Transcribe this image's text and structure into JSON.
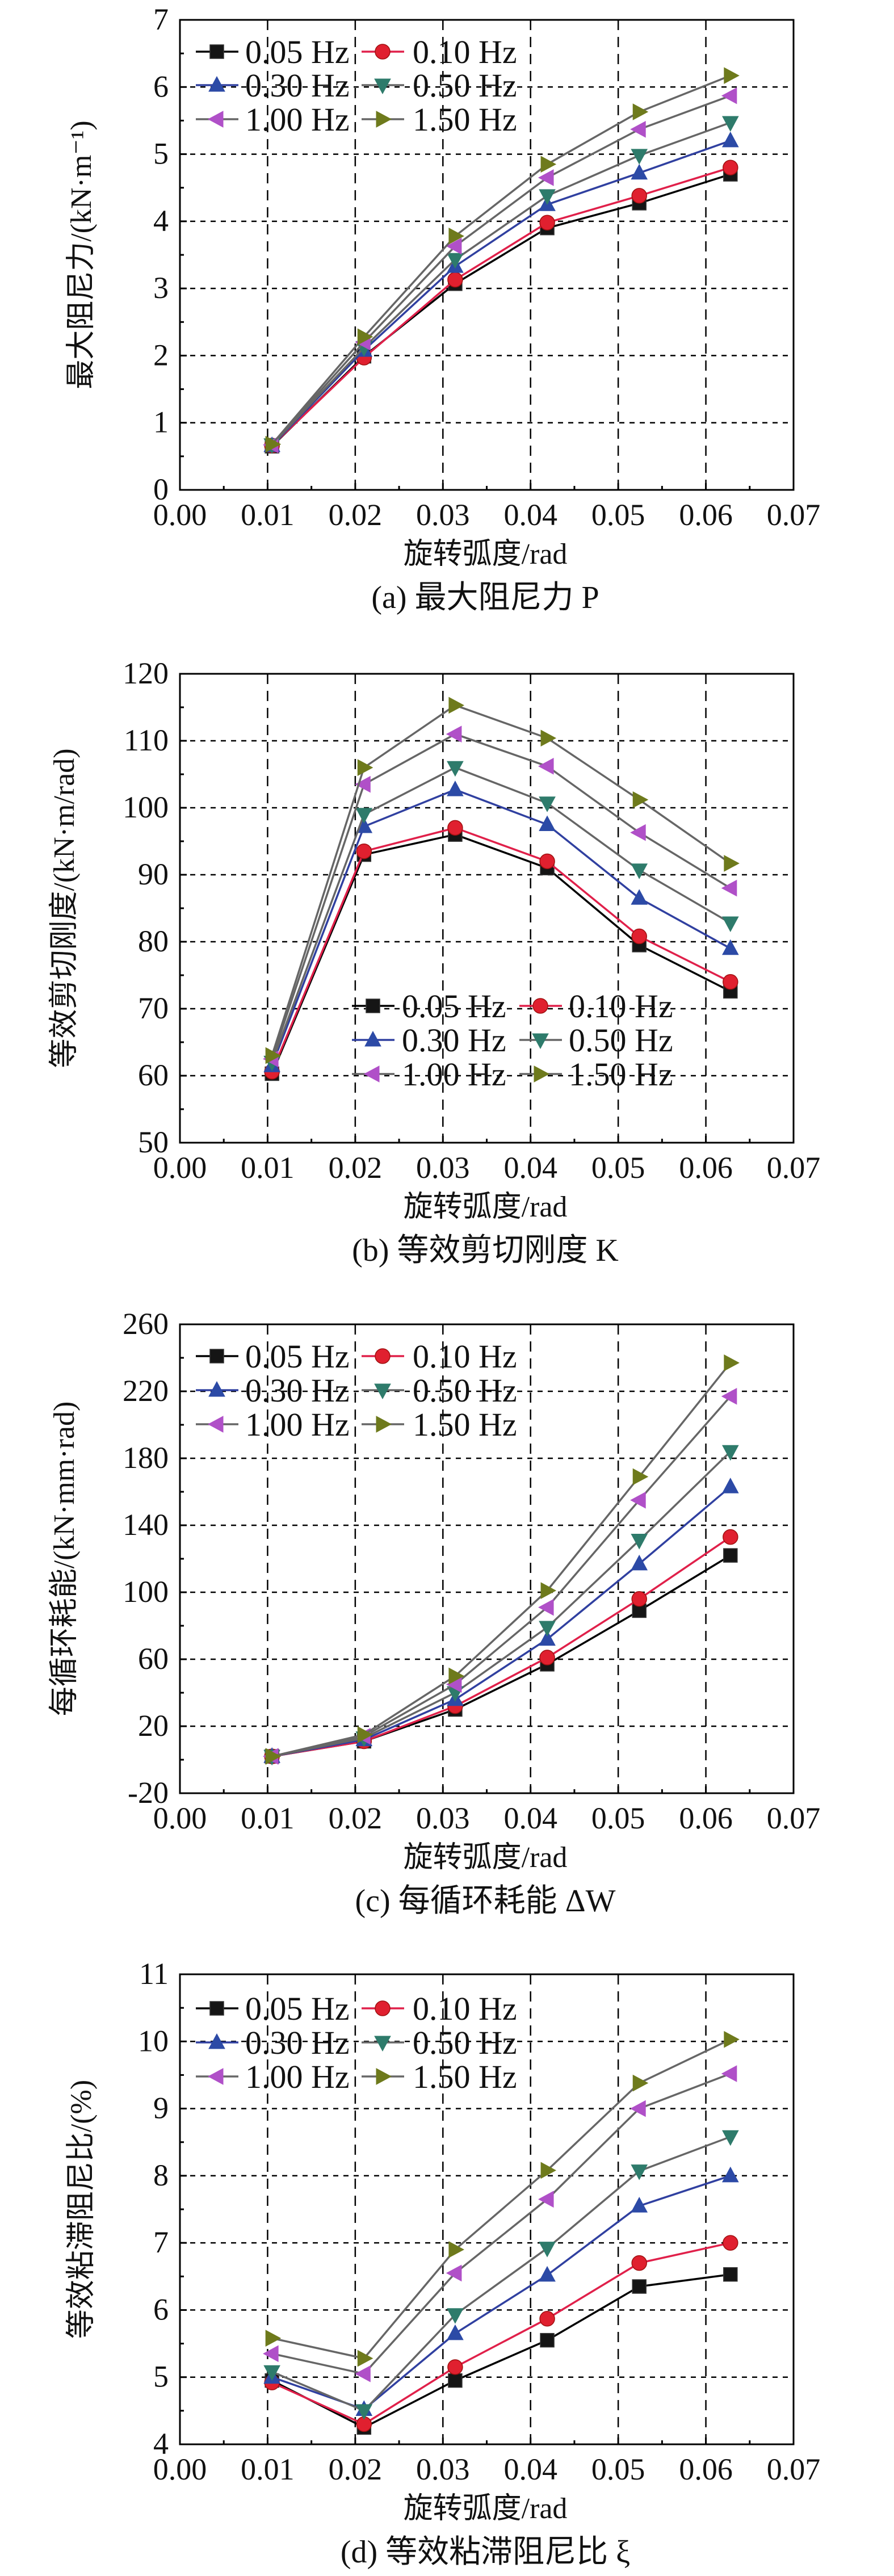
{
  "series_style": [
    {
      "name": "0.05 Hz",
      "marker": "square",
      "marker_color": "#151515",
      "line_color": "#000000"
    },
    {
      "name": "0.10 Hz",
      "marker": "circle",
      "marker_color": "#e0202f",
      "line_color": "#e0204a"
    },
    {
      "name": "0.30 Hz",
      "marker": "triangle-up",
      "marker_color": "#2c4aa6",
      "line_color": "#3040a0"
    },
    {
      "name": "0.50 Hz",
      "marker": "triangle-down",
      "marker_color": "#2e7b6b",
      "line_color": "#666666"
    },
    {
      "name": "1.00 Hz",
      "marker": "triangle-left",
      "marker_color": "#b050c8",
      "line_color": "#666666"
    },
    {
      "name": "1.50 Hz",
      "marker": "triangle-right",
      "marker_color": "#6e7a1c",
      "line_color": "#666666"
    }
  ],
  "chart_data": [
    {
      "type": "line",
      "caption": "(a) 最大阻尼力 P",
      "xlabel": "旋转弧度/rad",
      "ylabel": "最大阻尼力/(kN·m⁻¹)",
      "xlim": [
        0,
        0.07
      ],
      "ylim": [
        0,
        7
      ],
      "xticks": [
        "0.00",
        "0.01",
        "0.02",
        "0.03",
        "0.04",
        "0.05",
        "0.06",
        "0.07"
      ],
      "yticks": [
        "0",
        "1",
        "2",
        "3",
        "4",
        "5",
        "6",
        "7"
      ],
      "grid": true,
      "legend": "top-left",
      "x": [
        0.0105,
        0.021,
        0.0314,
        0.0419,
        0.0524,
        0.0628
      ],
      "series": [
        {
          "name": "0.05 Hz",
          "values": [
            0.65,
            1.99,
            3.07,
            3.9,
            4.27,
            4.7
          ]
        },
        {
          "name": "0.10 Hz",
          "values": [
            0.66,
            1.97,
            3.13,
            3.98,
            4.38,
            4.8
          ]
        },
        {
          "name": "0.30 Hz",
          "values": [
            0.66,
            2.08,
            3.33,
            4.25,
            4.72,
            5.2
          ]
        },
        {
          "name": "0.50 Hz",
          "values": [
            0.67,
            2.12,
            3.43,
            4.38,
            4.98,
            5.47
          ]
        },
        {
          "name": "1.00 Hz",
          "values": [
            0.67,
            2.2,
            3.63,
            4.65,
            5.37,
            5.87
          ]
        },
        {
          "name": "1.50 Hz",
          "values": [
            0.68,
            2.28,
            3.78,
            4.85,
            5.63,
            6.17
          ]
        }
      ]
    },
    {
      "type": "line",
      "caption": "(b) 等效剪切刚度 K",
      "xlabel": "旋转弧度/rad",
      "ylabel": "等效剪切刚度/(kN·m/rad)",
      "xlim": [
        0,
        0.07
      ],
      "ylim": [
        50,
        120
      ],
      "xticks": [
        "0.00",
        "0.01",
        "0.02",
        "0.03",
        "0.04",
        "0.05",
        "0.06",
        "0.07"
      ],
      "yticks": [
        "50",
        "60",
        "70",
        "80",
        "90",
        "100",
        "110",
        "120"
      ],
      "grid": true,
      "legend": "bottom-center",
      "x": [
        0.0105,
        0.021,
        0.0314,
        0.0419,
        0.0524,
        0.0628
      ],
      "series": [
        {
          "name": "0.05 Hz",
          "values": [
            60.3,
            93.0,
            96.0,
            91.0,
            79.5,
            72.6
          ]
        },
        {
          "name": "0.10 Hz",
          "values": [
            60.6,
            93.5,
            97.0,
            92.0,
            80.8,
            74.0
          ]
        },
        {
          "name": "0.30 Hz",
          "values": [
            61.5,
            97.2,
            102.7,
            97.5,
            86.5,
            79.0
          ]
        },
        {
          "name": "0.50 Hz",
          "values": [
            62.0,
            99.0,
            106.0,
            100.7,
            90.7,
            82.8
          ]
        },
        {
          "name": "1.00 Hz",
          "values": [
            62.5,
            103.5,
            111.0,
            106.2,
            96.3,
            88.0
          ]
        },
        {
          "name": "1.50 Hz",
          "values": [
            63.0,
            106.0,
            115.3,
            110.4,
            101.2,
            91.7
          ]
        }
      ]
    },
    {
      "type": "line",
      "caption": "(c) 每循环耗能 ΔW",
      "xlabel": "旋转弧度/rad",
      "ylabel": "每循环耗能/(kN·mm·rad)",
      "xlim": [
        0,
        0.07
      ],
      "ylim": [
        -20,
        260
      ],
      "xticks": [
        "0.00",
        "0.01",
        "0.02",
        "0.03",
        "0.04",
        "0.05",
        "0.06",
        "0.07"
      ],
      "yticks": [
        "-20",
        "20",
        "60",
        "100",
        "140",
        "180",
        "220",
        "260"
      ],
      "grid": true,
      "legend": "top-left",
      "x": [
        0.0105,
        0.021,
        0.0314,
        0.0419,
        0.0524,
        0.0628
      ],
      "series": [
        {
          "name": "0.05 Hz",
          "values": [
            2,
            11,
            30,
            57,
            89,
            122
          ]
        },
        {
          "name": "0.10 Hz",
          "values": [
            2,
            11,
            32,
            61,
            96,
            133
          ]
        },
        {
          "name": "0.30 Hz",
          "values": [
            2,
            12,
            36,
            72,
            117,
            163
          ]
        },
        {
          "name": "0.50 Hz",
          "values": [
            2,
            13,
            40,
            79,
            131,
            184
          ]
        },
        {
          "name": "1.00 Hz",
          "values": [
            2,
            14,
            45,
            91,
            155,
            217
          ]
        },
        {
          "name": "1.50 Hz",
          "values": [
            2,
            15,
            50,
            101,
            169,
            237
          ]
        }
      ]
    },
    {
      "type": "line",
      "caption": "(d) 等效粘滞阻尼比 ξ",
      "xlabel": "旋转弧度/rad",
      "ylabel": "等效粘滞阻尼比/(%)",
      "xlim": [
        0,
        0.07
      ],
      "ylim": [
        4,
        11
      ],
      "xticks": [
        "0.00",
        "0.01",
        "0.02",
        "0.03",
        "0.04",
        "0.05",
        "0.06",
        "0.07"
      ],
      "yticks": [
        "4",
        "5",
        "6",
        "7",
        "8",
        "9",
        "10",
        "11"
      ],
      "grid": true,
      "legend": "top-left",
      "x": [
        0.0105,
        0.021,
        0.0314,
        0.0419,
        0.0524,
        0.0628
      ],
      "series": [
        {
          "name": "0.05 Hz",
          "values": [
            4.95,
            4.25,
            4.95,
            5.55,
            6.35,
            6.53
          ]
        },
        {
          "name": "0.10 Hz",
          "values": [
            4.92,
            4.3,
            5.15,
            5.87,
            6.7,
            7.0
          ]
        },
        {
          "name": "0.30 Hz",
          "values": [
            5.0,
            4.52,
            5.65,
            6.52,
            7.55,
            8.0
          ]
        },
        {
          "name": "0.50 Hz",
          "values": [
            5.08,
            4.5,
            5.93,
            6.92,
            8.07,
            8.58
          ]
        },
        {
          "name": "1.00 Hz",
          "values": [
            5.35,
            5.05,
            6.55,
            7.65,
            9.0,
            9.52
          ]
        },
        {
          "name": "1.50 Hz",
          "values": [
            5.58,
            5.28,
            6.9,
            8.08,
            9.38,
            10.03
          ]
        }
      ]
    }
  ]
}
